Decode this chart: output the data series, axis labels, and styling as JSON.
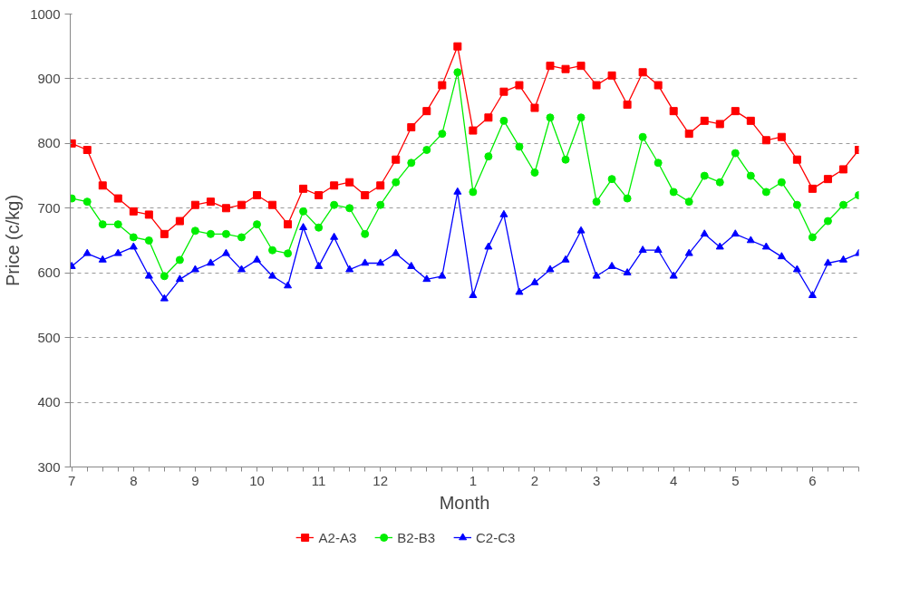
{
  "chart_data": {
    "type": "line",
    "xlabel": "Month",
    "ylabel": "Price (c/kg)",
    "categories": [
      "7",
      null,
      null,
      null,
      "8",
      null,
      null,
      null,
      "9",
      null,
      null,
      null,
      "10",
      null,
      null,
      null,
      "11",
      null,
      null,
      null,
      "12",
      null,
      null,
      null,
      null,
      null,
      "1",
      null,
      null,
      null,
      "2",
      null,
      null,
      null,
      "3",
      null,
      null,
      null,
      null,
      "4",
      null,
      null,
      null,
      "5",
      null,
      null,
      null,
      null,
      "6",
      null,
      null,
      null
    ],
    "ylim": [
      300,
      1000
    ],
    "yticks": [
      300,
      400,
      500,
      600,
      700,
      800,
      900,
      1000
    ],
    "grid": "y",
    "legend": "bottom",
    "line_style": "solid",
    "series": [
      {
        "name": "A2-A3",
        "color": "#ff0000",
        "marker": "square",
        "values": [
          800,
          790,
          735,
          715,
          695,
          690,
          660,
          680,
          705,
          710,
          700,
          705,
          720,
          705,
          675,
          730,
          720,
          735,
          740,
          720,
          735,
          775,
          825,
          850,
          890,
          950,
          820,
          840,
          880,
          890,
          855,
          920,
          915,
          920,
          890,
          905,
          860,
          910,
          890,
          850,
          815,
          835,
          830,
          850,
          835,
          805,
          810,
          775,
          730,
          745,
          760,
          790
        ]
      },
      {
        "name": "B2-B3",
        "color": "#00ee00",
        "marker": "circle",
        "values": [
          715,
          710,
          675,
          675,
          655,
          650,
          595,
          620,
          665,
          660,
          660,
          655,
          675,
          635,
          630,
          695,
          670,
          705,
          700,
          660,
          705,
          740,
          770,
          790,
          815,
          910,
          725,
          780,
          835,
          795,
          755,
          840,
          775,
          840,
          710,
          745,
          715,
          810,
          770,
          725,
          710,
          750,
          740,
          785,
          750,
          725,
          740,
          705,
          655,
          680,
          705,
          720
        ]
      },
      {
        "name": "C2-C3",
        "color": "#0000ff",
        "marker": "triangle",
        "values": [
          610,
          630,
          620,
          630,
          640,
          595,
          560,
          590,
          605,
          615,
          630,
          605,
          620,
          595,
          580,
          670,
          610,
          655,
          605,
          615,
          615,
          630,
          610,
          590,
          595,
          725,
          565,
          640,
          690,
          570,
          585,
          605,
          620,
          665,
          595,
          610,
          600,
          635,
          635,
          595,
          630,
          660,
          640,
          660,
          650,
          640,
          625,
          605,
          565,
          615,
          620,
          630
        ]
      }
    ]
  }
}
